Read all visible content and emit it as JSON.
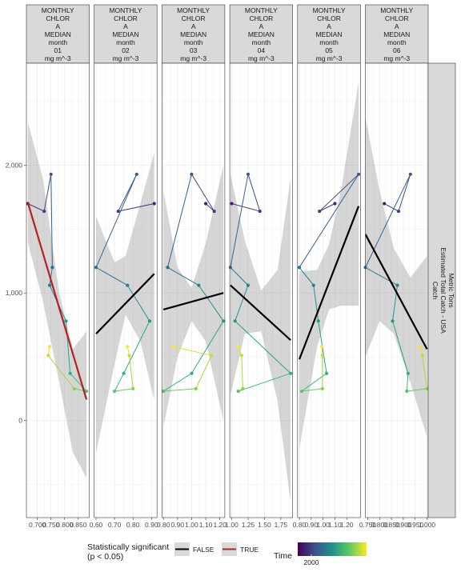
{
  "chart_data": {
    "type": "line",
    "y_range": [
      -760,
      2800
    ],
    "y_ticks": [
      0,
      1000,
      2000
    ],
    "y_tick_labels": [
      "0",
      "1,000",
      "2,000"
    ],
    "strip_right": [
      "Catch",
      "Estimated Total Catch - USA",
      "Metric Tons"
    ],
    "legend": {
      "significance_title": [
        "Statistically significant",
        "(p < 0.05)"
      ],
      "entries": [
        {
          "label": "FALSE",
          "color": "#000000"
        },
        {
          "label": "TRUE",
          "color": "#b22222"
        }
      ],
      "time_title": "Time",
      "time_tick": "2000",
      "time_range": [
        1994,
        2005
      ]
    },
    "catch_series": [
      1700,
      1640,
      1930,
      1200,
      1060,
      780,
      370,
      230,
      250,
      510,
      580
    ],
    "years": [
      1995,
      1996,
      1997,
      1998,
      1999,
      2000,
      2001,
      2002,
      2003,
      2004,
      2005
    ],
    "panels": [
      {
        "strip": [
          "MONTHLY",
          "CHLOR",
          "A",
          "MEDIAN",
          "month",
          "01",
          "mg m^-3"
        ],
        "x_range": [
          0.66,
          0.89
        ],
        "x_ticks": [
          0.7,
          0.75,
          0.8,
          0.85
        ],
        "x_tick_labels": [
          "0.700",
          "0.750",
          "0.800",
          "0.850"
        ],
        "x": [
          0.665,
          0.725,
          0.75,
          0.755,
          0.745,
          0.805,
          0.82,
          0.88,
          0.835,
          0.74,
          0.745
        ],
        "fit": {
          "x": [
            0.665,
            0.88
          ],
          "y": [
            1710,
            165
          ],
          "significant": true
        },
        "band": {
          "x": [
            0.665,
            0.72,
            0.78,
            0.83,
            0.88
          ],
          "lo": [
            1400,
            940,
            300,
            -250,
            -450
          ],
          "hi": [
            2340,
            1900,
            1000,
            560,
            700
          ]
        }
      },
      {
        "strip": [
          "MONTHLY",
          "CHLOR",
          "A",
          "MEDIAN",
          "month",
          "02",
          "mg m^-3"
        ],
        "x_range": [
          0.59,
          0.93
        ],
        "x_ticks": [
          0.6,
          0.7,
          0.8,
          0.9
        ],
        "x_tick_labels": [
          "0.60",
          "0.70",
          "0.80",
          "0.90"
        ],
        "x": [
          0.915,
          0.72,
          0.82,
          0.6,
          0.77,
          0.89,
          0.75,
          0.7,
          0.8,
          0.78,
          0.77
        ],
        "fit": {
          "x": [
            0.6,
            0.915
          ],
          "y": [
            680,
            1150
          ],
          "significant": false
        },
        "band": {
          "x": [
            0.6,
            0.7,
            0.76,
            0.84,
            0.915
          ],
          "lo": [
            -250,
            440,
            830,
            620,
            160
          ],
          "hi": [
            1600,
            1240,
            1290,
            1700,
            2100
          ]
        }
      },
      {
        "strip": [
          "MONTHLY",
          "CHLOR",
          "A",
          "MEDIAN",
          "month",
          "03",
          "mg m^-3"
        ],
        "x_range": [
          0.79,
          1.235
        ],
        "x_ticks": [
          0.8,
          0.9,
          1.0,
          1.1,
          1.2
        ],
        "x_tick_labels": [
          "0.80",
          "0.90",
          "1.00",
          "1.10",
          "1.20"
        ],
        "x": [
          1.1,
          1.16,
          1.0,
          0.83,
          1.05,
          1.225,
          1.0,
          0.8,
          1.03,
          1.14,
          0.87
        ],
        "fit": {
          "x": [
            0.8,
            1.225
          ],
          "y": [
            870,
            1000
          ],
          "significant": false
        },
        "band": {
          "x": [
            0.8,
            0.9,
            1.0,
            1.1,
            1.225
          ],
          "lo": [
            -50,
            500,
            780,
            620,
            0
          ],
          "hi": [
            1800,
            1200,
            1040,
            1390,
            2000
          ]
        }
      },
      {
        "strip": [
          "MONTHLY",
          "CHLOR",
          "A",
          "MEDIAN",
          "month",
          "04",
          "mg m^-3"
        ],
        "x_range": [
          0.97,
          1.93
        ],
        "x_ticks": [
          1.0,
          1.25,
          1.5,
          1.75
        ],
        "x_tick_labels": [
          "1.00",
          "1.25",
          "1.50",
          "1.75"
        ],
        "x": [
          1.0,
          1.43,
          1.25,
          0.98,
          1.25,
          1.05,
          1.9,
          1.1,
          1.17,
          1.15,
          1.1
        ],
        "fit": {
          "x": [
            0.98,
            1.9
          ],
          "y": [
            1060,
            630
          ],
          "significant": false
        },
        "band": {
          "x": [
            0.98,
            1.2,
            1.45,
            1.7,
            1.9
          ],
          "lo": [
            200,
            680,
            700,
            150,
            -640
          ],
          "hi": [
            1930,
            1410,
            1020,
            1180,
            1900
          ]
        }
      },
      {
        "strip": [
          "MONTHLY",
          "CHLOR",
          "A",
          "MEDIAN",
          "month",
          "05",
          "mg m^-3"
        ],
        "x_range": [
          0.785,
          1.315
        ],
        "x_ticks": [
          0.8,
          0.9,
          1.0,
          1.1,
          1.2
        ],
        "x_tick_labels": [
          "0.80",
          "0.90",
          "1.00",
          "1.10",
          "1.20"
        ],
        "x": [
          1.1,
          0.97,
          1.3,
          0.8,
          0.92,
          0.96,
          1.03,
          0.82,
          0.995,
          0.995,
          0.99
        ],
        "fit": {
          "x": [
            0.8,
            1.3
          ],
          "y": [
            480,
            1680
          ],
          "significant": false
        },
        "band": {
          "x": [
            0.8,
            0.95,
            1.05,
            1.15,
            1.3
          ],
          "lo": [
            -220,
            580,
            870,
            900,
            900
          ],
          "hi": [
            1170,
            1180,
            1380,
            1800,
            2650
          ]
        }
      },
      {
        "strip": [
          "MONTHLY",
          "CHLOR",
          "A",
          "MEDIAN",
          "month",
          "06",
          "mg m^-3"
        ],
        "x_range": [
          0.74,
          1.005
        ],
        "x_ticks": [
          0.75,
          0.8,
          0.85,
          0.9,
          0.95,
          1.0
        ],
        "x_tick_labels": [
          "0.750",
          "0.800",
          "0.850",
          "0.900",
          "0.950",
          "1.000"
        ],
        "x": [
          0.82,
          0.88,
          0.93,
          0.74,
          0.875,
          0.855,
          0.92,
          0.915,
          1.0,
          0.98,
          0.97
        ],
        "fit": {
          "x": [
            0.74,
            1.0
          ],
          "y": [
            1460,
            560
          ],
          "significant": false
        },
        "band": {
          "x": [
            0.74,
            0.8,
            0.86,
            0.93,
            1.0
          ],
          "lo": [
            500,
            780,
            680,
            300,
            -130
          ],
          "hi": [
            2380,
            1800,
            1350,
            1120,
            1290
          ]
        }
      }
    ]
  }
}
